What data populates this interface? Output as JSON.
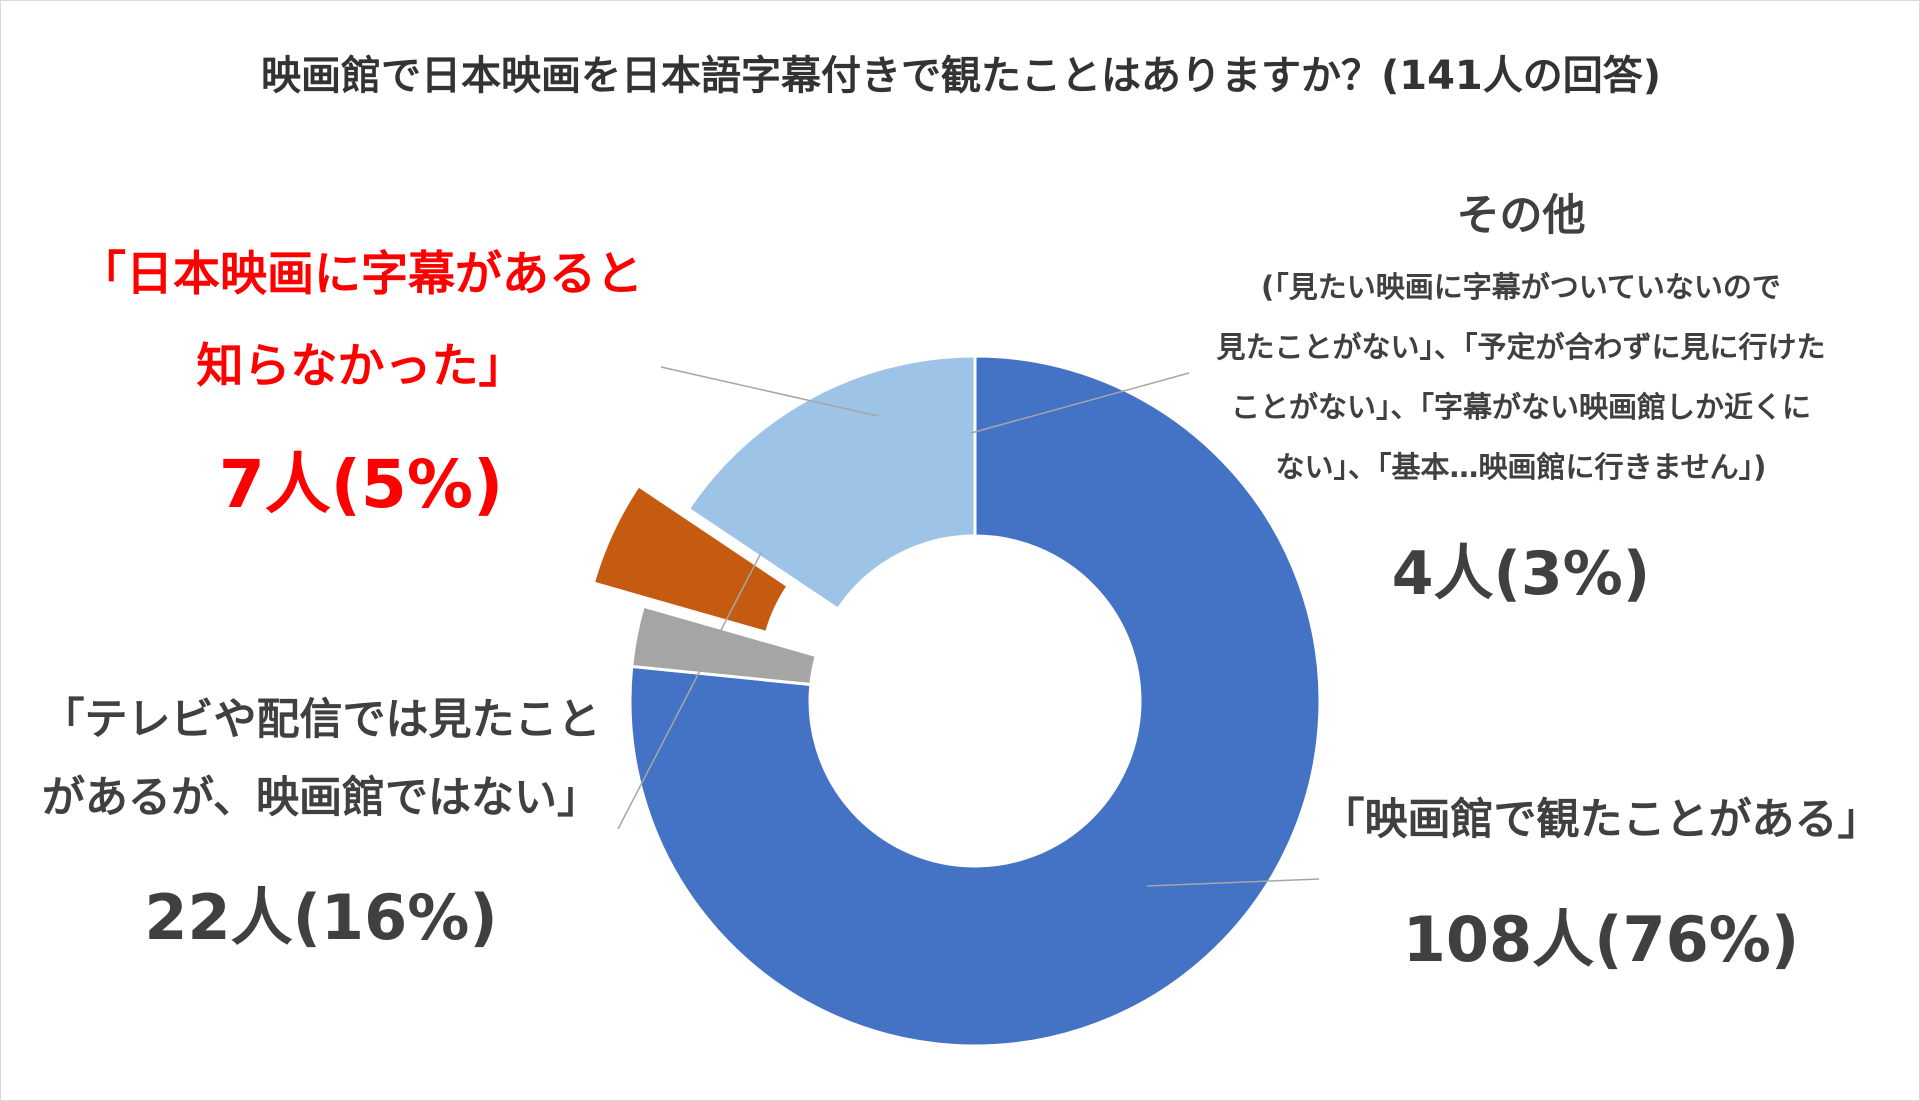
{
  "chart_data": {
    "type": "pie",
    "donut": true,
    "title": "映画館で日本映画を日本語字幕付きで観たことはありますか？(141人の回答)",
    "total": 141,
    "slices": [
      {
        "key": "cinema",
        "lines": [
          "「映画館で観たことがある」"
        ],
        "value": 108,
        "value_label": "108人(76%)",
        "color": "#4472c4",
        "exploded": false
      },
      {
        "key": "other",
        "heading": "その他",
        "lines": [
          "(「見たい映画に字幕がついていないので",
          "見たことがない」、「予定が合わずに見に行けた",
          "ことがない」、「字幕がない映画館しか近くに",
          "ない」、「基本…映画館に行きません」)"
        ],
        "value": 4,
        "value_label": "4人(3%)",
        "color": "#a5a5a5",
        "exploded": false
      },
      {
        "key": "unaware",
        "lines": [
          "「日本映画に字幕があると",
          "知らなかった」"
        ],
        "value": 7,
        "value_label": "7人(5%)",
        "color": "#c55a11",
        "exploded": true,
        "label_color": "#ff0000"
      },
      {
        "key": "tv",
        "lines": [
          "「テレビや配信では見たこと",
          "があるが、映画館ではない」"
        ],
        "value": 22,
        "value_label": "22人(16%)",
        "color": "#9dc3e6",
        "exploded": false
      }
    ]
  }
}
